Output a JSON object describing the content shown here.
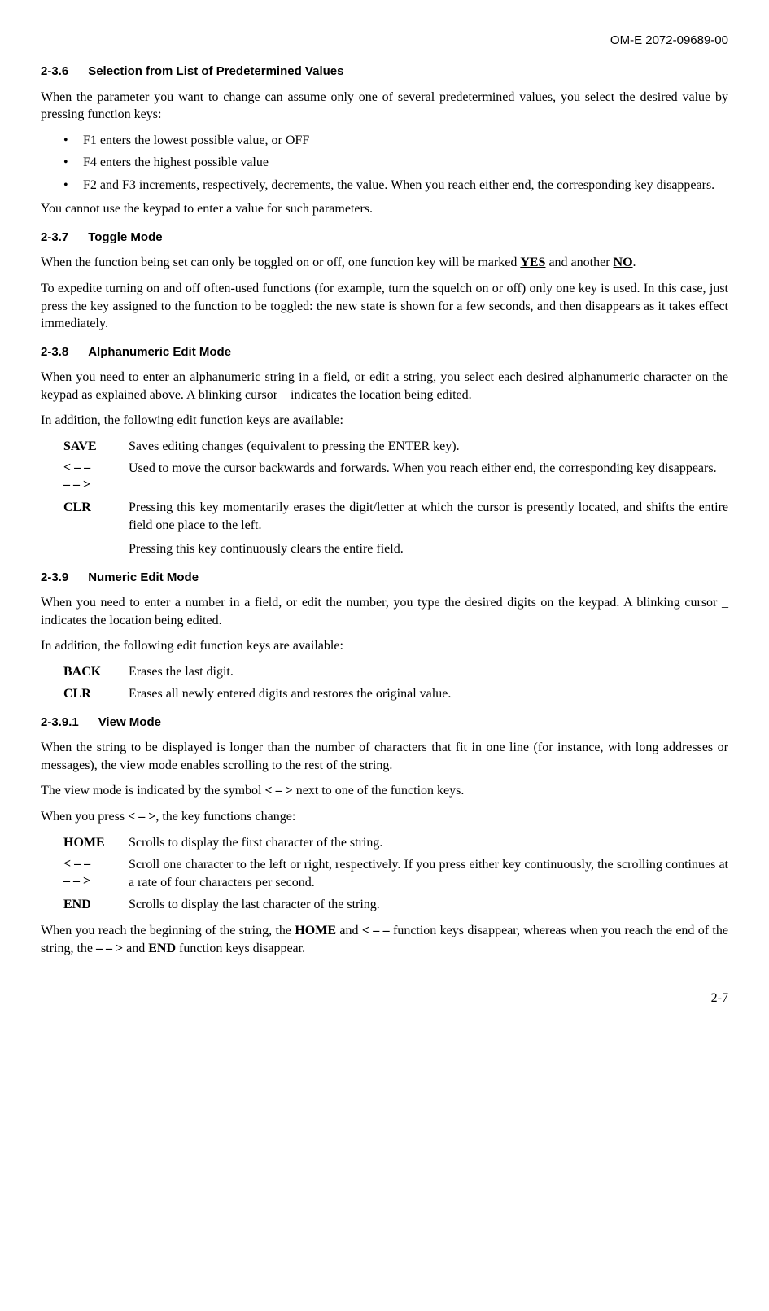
{
  "doc_id": "OM-E 2072-09689-00",
  "s1": {
    "num": "2-3.6",
    "title": "Selection from List of Predetermined Values",
    "p1": "When the parameter you want to change can assume only one of several predetermined values, you select the desired value by pressing function keys:",
    "b1": "F1 enters the lowest possible value, or OFF",
    "b2": "F4 enters the highest possible value",
    "b3": "F2 and F3 increments, respectively, decrements, the value. When you reach either end, the corresponding key disappears.",
    "p2": "You cannot use the keypad to enter a value for such parameters."
  },
  "s2": {
    "num": "2-3.7",
    "title": "Toggle Mode",
    "p1a": "When the function being set can only be toggled on or off, one function key will be marked ",
    "p1b": "YES",
    "p1c": " and another ",
    "p1d": "NO",
    "p1e": ".",
    "p2": "To expedite turning on and off often-used functions (for example, turn the squelch on or off) only one key is used. In this case, just press the key assigned to the function to be toggled: the new state is shown for a few seconds, and then disappears as it takes effect immediately."
  },
  "s3": {
    "num": "2-3.8",
    "title": "Alphanumeric Edit Mode",
    "p1": "When you need to enter an alphanumeric string in a field, or edit a string, you select each desired alphanumeric character on the keypad as explained above. A blinking cursor _ indicates the location being edited.",
    "p2": "In addition, the following edit function keys are available:",
    "k1": "SAVE",
    "v1": "Saves editing changes (equivalent to pressing the ENTER key).",
    "k2a": "< – –",
    "k2b": "– – >",
    "v2": "Used to move the cursor backwards and forwards. When you reach either end, the corresponding key disappears.",
    "k3": "CLR",
    "v3a": "Pressing this key momentarily erases the digit/letter at which the cursor is presently located, and shifts the entire field one place to the left.",
    "v3b": "Pressing this key continuously clears the entire field."
  },
  "s4": {
    "num": "2-3.9",
    "title": "Numeric Edit Mode",
    "p1": "When you need to enter a number in a field, or edit the number, you type the desired digits on the keypad. A blinking cursor _ indicates the location being edited.",
    "p2": "In addition, the following edit function keys are available:",
    "k1": "BACK",
    "v1": "Erases the last digit.",
    "k2": "CLR",
    "v2": "Erases all newly entered digits and restores the original value."
  },
  "s5": {
    "num": "2-3.9.1",
    "title": "View Mode",
    "p1": "When the string to be displayed is longer than the number of characters that fit in one line (for instance, with long addresses or messages), the view mode enables scrolling to the rest of the string.",
    "p2a": "The view mode is indicated by the symbol ",
    "p2b": "< – >",
    "p2c": " next to one of the function keys.",
    "p3a": "When you press ",
    "p3b": "< – >",
    "p3c": ", the key functions change:",
    "k1": "HOME",
    "v1": "Scrolls to display the first character of the string.",
    "k2a": "< – –",
    "k2b": " – – >",
    "v2": "Scroll one character to the left or right, respectively. If you press either key continuously, the scrolling continues at a rate of four characters per second.",
    "k3": "END",
    "v3": "Scrolls to display the last character of the string.",
    "p4a": "When you reach the beginning of the string, the ",
    "p4b": "HOME",
    "p4c": " and ",
    "p4d": "< – –",
    "p4e": " function keys disappear, whereas when you reach the end of the string, the ",
    "p4f": "– – >",
    "p4g": " and ",
    "p4h": "END",
    "p4i": " function keys disappear."
  },
  "page_num": "2-7"
}
